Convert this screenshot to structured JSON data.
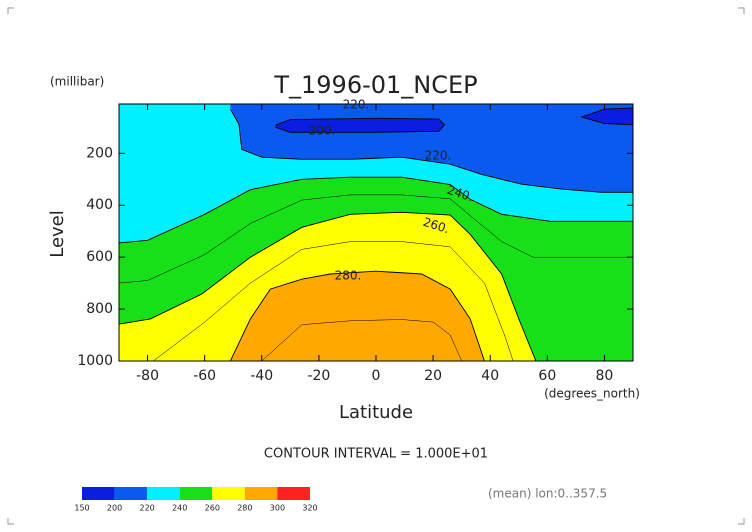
{
  "chart_data": {
    "type": "contour",
    "title": "T_1996-01_NCEP",
    "y_unit": "(millibar)",
    "ylabel": "Level",
    "xlabel": "Latitude",
    "x_unit": "(degrees_north)",
    "note": "CONTOUR INTERVAL = 1.000E+01",
    "footer": "(mean) lon:0..357.5",
    "xlim": [
      -90,
      90
    ],
    "ylim": [
      1000,
      10
    ],
    "xticks": [
      -80,
      -60,
      -40,
      -20,
      0,
      20,
      40,
      60,
      80
    ],
    "yticks": [
      200,
      400,
      600,
      800,
      1000
    ],
    "background_color": "#00f0ff",
    "levels": [
      150,
      200,
      220,
      240,
      260,
      280,
      300,
      320
    ],
    "colors": [
      "#0a1ee0",
      "#0a5af0",
      "#00f0ff",
      "#18e018",
      "#ffff00",
      "#ffa800",
      "#ff2020"
    ],
    "contours": [
      {
        "level": 240,
        "fill": "below",
        "color": "#18e018",
        "lat": [
          -90,
          -80,
          -60,
          -44,
          -26,
          -9,
          9,
          26,
          33,
          44,
          61,
          79,
          90
        ],
        "p": [
          545,
          535,
          435,
          340,
          300,
          292,
          292,
          320,
          377,
          435,
          462,
          462,
          462
        ]
      },
      {
        "level": 260,
        "fill": "below",
        "color": "#ffff00",
        "lat": [
          -90,
          -79,
          -61,
          -44,
          -26,
          -9,
          9,
          26,
          33,
          44,
          50,
          56
        ],
        "p": [
          858,
          838,
          742,
          600,
          485,
          435,
          427,
          438,
          512,
          665,
          838,
          1000
        ]
      },
      {
        "level": 280,
        "fill": "below",
        "color": "#ffa800",
        "lat": [
          -51,
          -44,
          -37,
          -26,
          -16,
          0,
          16,
          26,
          33,
          38
        ],
        "p": [
          1000,
          838,
          723,
          685,
          665,
          654,
          665,
          723,
          838,
          1000
        ]
      },
      {
        "level": 220,
        "fill": "above",
        "color": "#0a5af0",
        "lat": [
          -51,
          -48,
          -47,
          -40,
          -26,
          -9,
          9,
          26,
          37,
          51,
          65,
          79,
          90
        ],
        "p": [
          30,
          88,
          185,
          215,
          223,
          223,
          215,
          242,
          281,
          319,
          338,
          350,
          350
        ]
      },
      {
        "level": 200,
        "fill": "closed",
        "color": "#0a1ee0",
        "lat": [
          -35,
          -30,
          0,
          22,
          24,
          22,
          0,
          -30,
          -35
        ],
        "p": [
          90,
          70,
          65,
          68,
          90,
          115,
          119,
          119,
          100
        ]
      },
      {
        "level": 200,
        "fill": "closed",
        "color": "#0a1ee0",
        "lat": [
          72,
          80,
          90,
          90,
          80
        ],
        "p": [
          60,
          30,
          25,
          90,
          85
        ]
      },
      {
        "level": 250,
        "fill": "none",
        "lat": [
          -90,
          -80,
          -60,
          -44,
          -26,
          -9,
          9,
          26,
          33,
          44,
          55,
          70,
          90
        ],
        "p": [
          700,
          690,
          590,
          470,
          380,
          360,
          360,
          375,
          440,
          540,
          600,
          600,
          600
        ]
      },
      {
        "level": 270,
        "fill": "none",
        "lat": [
          -78,
          -60,
          -44,
          -26,
          -9,
          9,
          26,
          38,
          45,
          48
        ],
        "p": [
          1000,
          850,
          700,
          570,
          540,
          540,
          560,
          700,
          900,
          1000
        ]
      },
      {
        "level": 290,
        "fill": "none",
        "lat": [
          -40,
          -26,
          -9,
          9,
          20,
          26,
          30
        ],
        "p": [
          1000,
          860,
          845,
          840,
          850,
          900,
          1000
        ]
      }
    ],
    "contour_labels": [
      "220.",
      "220.",
      "200.",
      "240.",
      "260.",
      "280."
    ]
  }
}
